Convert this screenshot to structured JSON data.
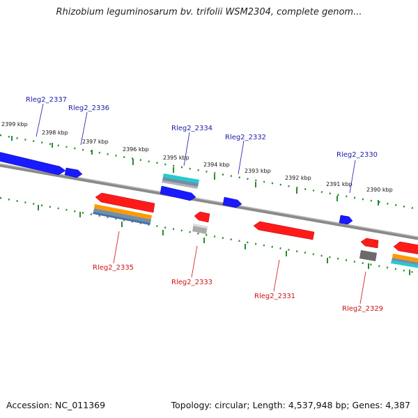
{
  "header": {
    "title": "Rhizobium leguminosarum bv. trifolii WSM2304, complete genom..."
  },
  "footer": {
    "accession": "Accession: NC_011369",
    "summary": "Topology: circular; Length: 4,537,948 bp; Genes: 4,387"
  },
  "colors": {
    "forward_gene": "#1a1aff",
    "reverse_gene": "#ff1a1a",
    "backbone": "#8a8a8a",
    "tick": "#2a8a2a",
    "orange_feature": "#ff9900",
    "cyan_feature": "#22cccc",
    "grey_feature": "#9a9a9a",
    "label_fwd": "#1a1aa8",
    "label_rev": "#cc1111"
  },
  "ticks": [
    "2399 kbp",
    "2398 kbp",
    "2397 kbp",
    "2396 kbp",
    "2395 kbp",
    "2394 kbp",
    "2393 kbp",
    "2392 kbp",
    "2391 kbp",
    "2390 kbp"
  ],
  "genes_forward": [
    "Rleg2_2337",
    "Rleg2_2336",
    "Rleg2_2334",
    "Rleg2_2332",
    "Rleg2_2330"
  ],
  "genes_reverse": [
    "Rleg2_2335",
    "Rleg2_2333",
    "Rleg2_2331",
    "Rleg2_2329"
  ]
}
